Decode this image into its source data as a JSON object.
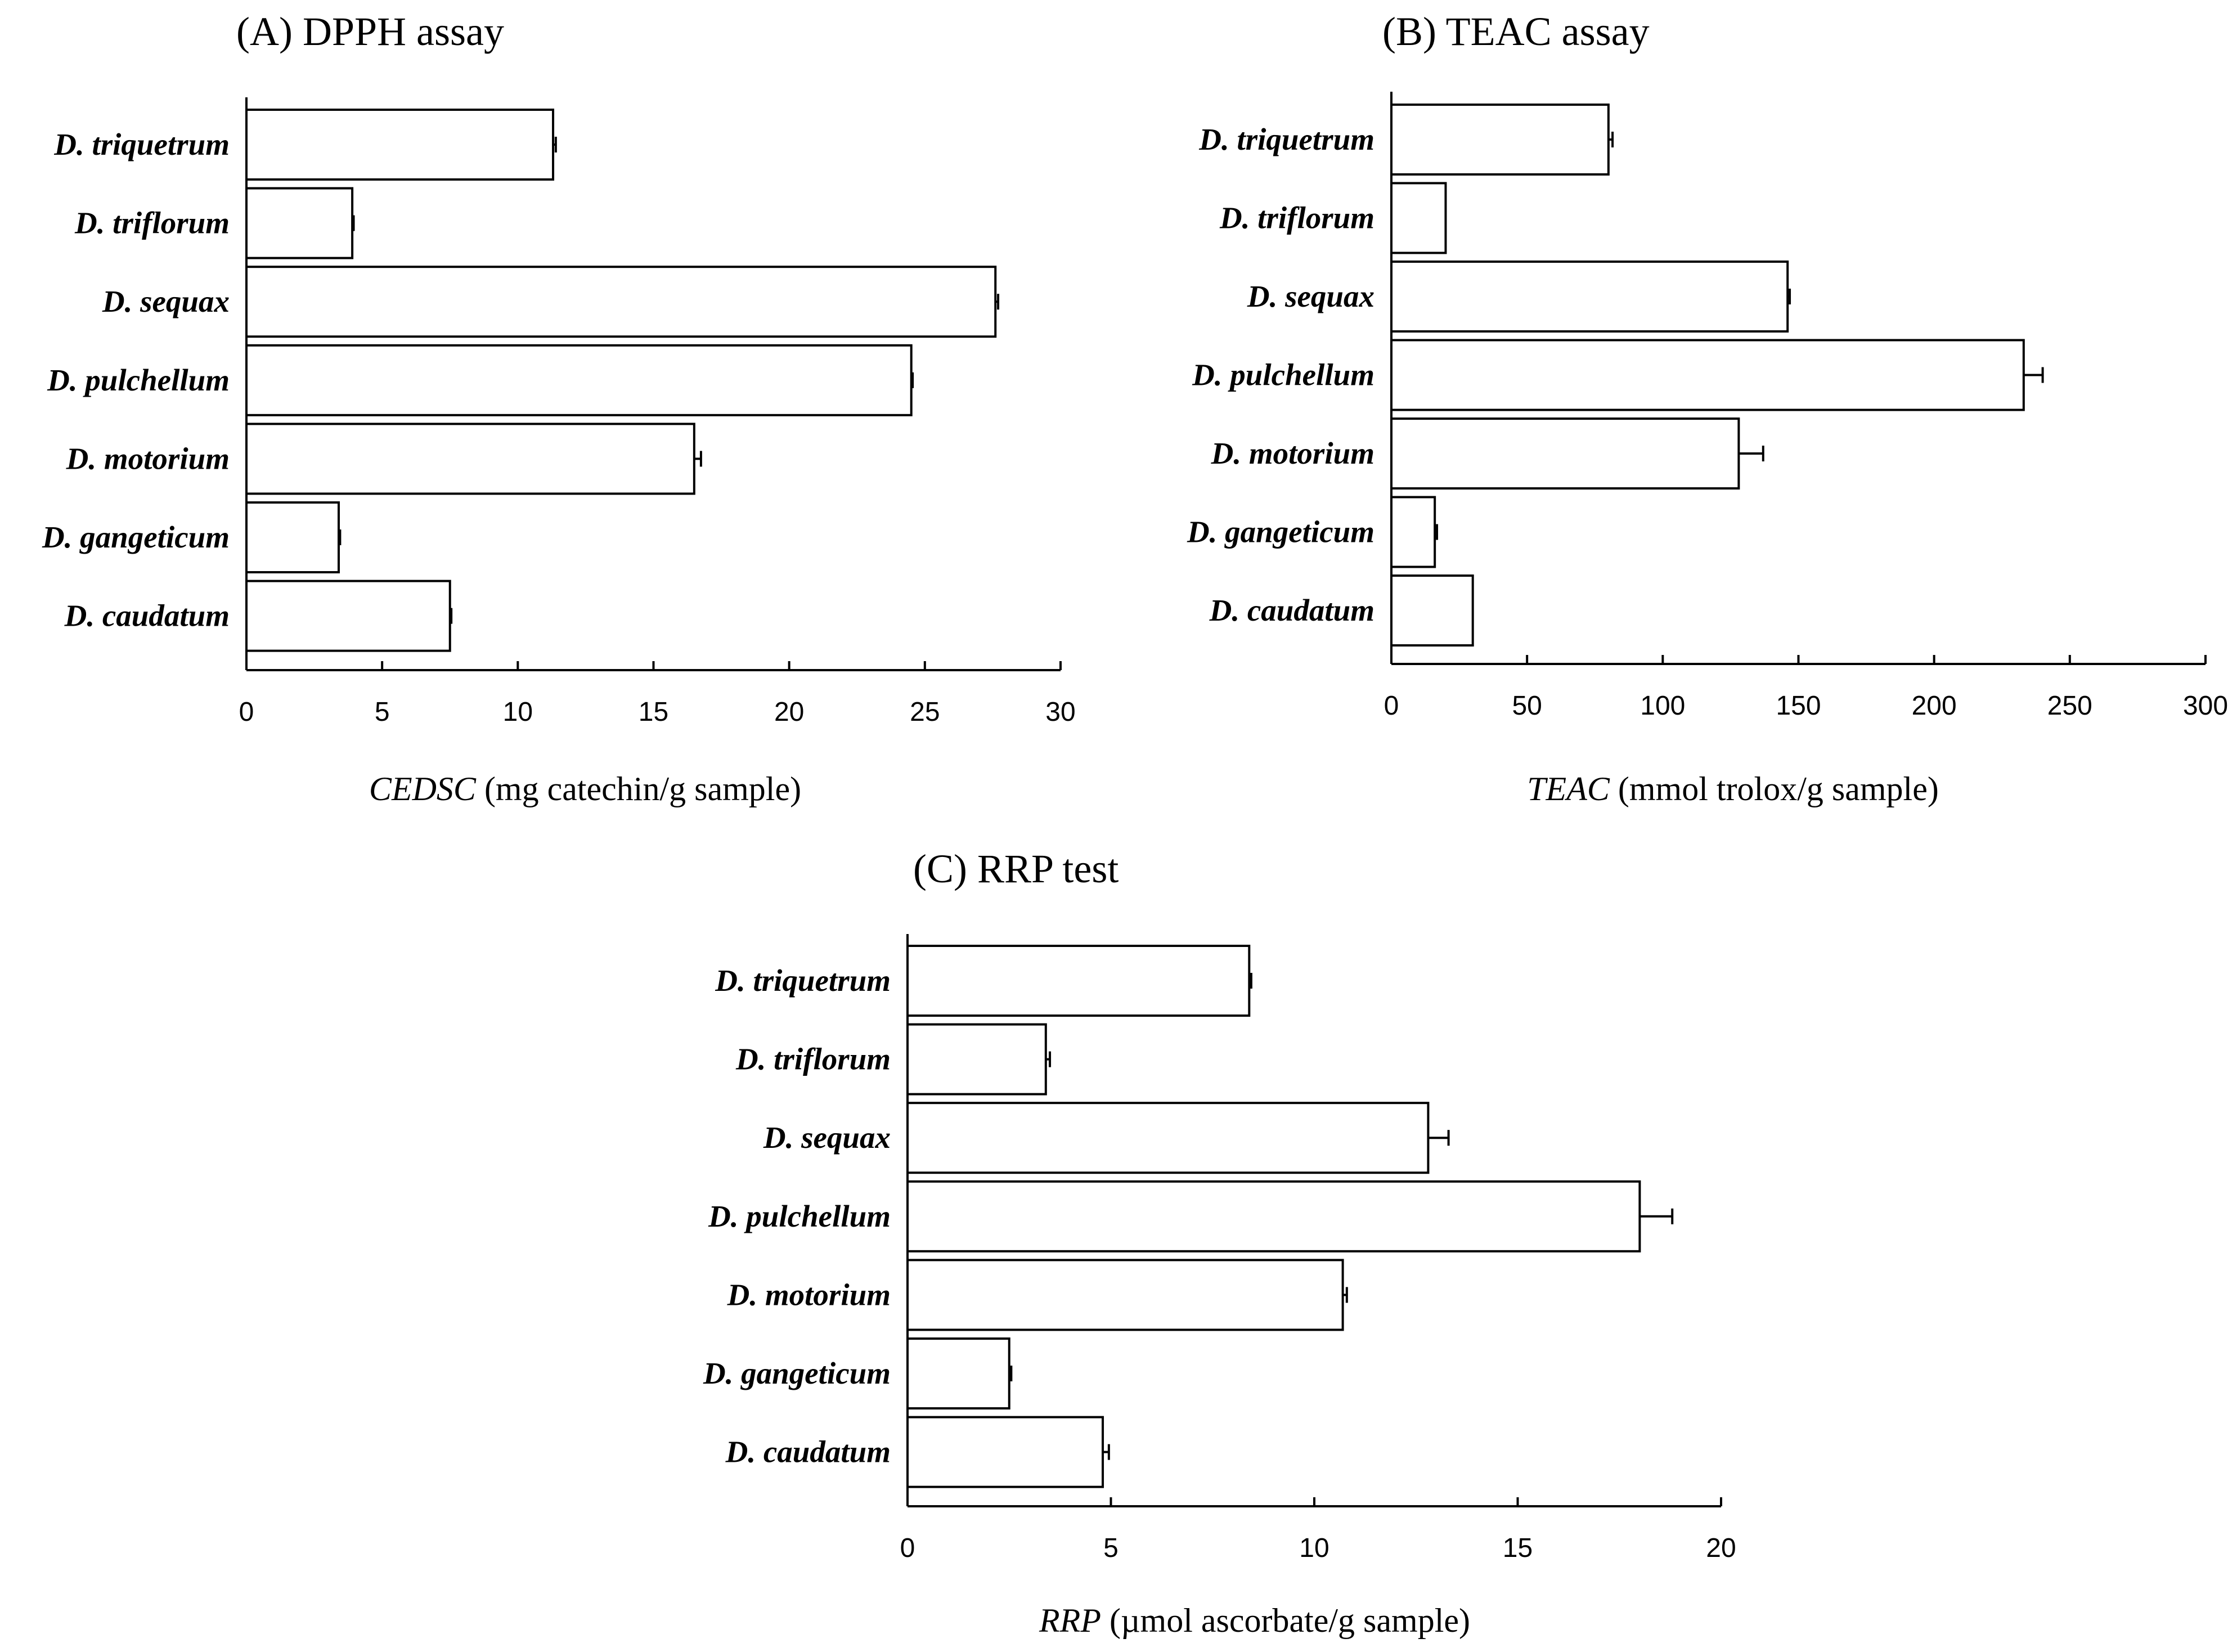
{
  "chart_data": [
    {
      "type": "bar",
      "orientation": "horizontal",
      "title": "(A) DPPH assay",
      "xlabel_italic": "CEDSC",
      "xlabel_rest": " (mg catechin/g sample)",
      "xlim": [
        0,
        30
      ],
      "xticks": [
        0,
        5,
        10,
        15,
        20,
        25,
        30
      ],
      "categories": [
        "D. triquetrum",
        "D. triflorum",
        "D. sequax",
        "D. pulchellum",
        "D. motorium",
        "D. gangeticum",
        "D. caudatum"
      ],
      "values": [
        11.3,
        3.9,
        27.6,
        24.5,
        16.5,
        3.4,
        7.5
      ],
      "errors": [
        0.1,
        0.05,
        0.1,
        0.05,
        0.25,
        0.05,
        0.05
      ]
    },
    {
      "type": "bar",
      "orientation": "horizontal",
      "title": "(B) TEAC assay",
      "xlabel_italic": "TEAC",
      "xlabel_rest": " (mmol trolox/g sample)",
      "xlim": [
        0,
        300
      ],
      "xticks": [
        0,
        50,
        100,
        150,
        200,
        250,
        300
      ],
      "categories": [
        "D. triquetrum",
        "D. triflorum",
        "D. sequax",
        "D. pulchellum",
        "D. motorium",
        "D. gangeticum",
        "D. caudatum"
      ],
      "values": [
        80,
        20,
        146,
        233,
        128,
        16,
        30
      ],
      "errors": [
        1.5,
        0,
        0.8,
        7,
        9,
        0.8,
        0
      ]
    },
    {
      "type": "bar",
      "orientation": "horizontal",
      "title": "(C) RRP test",
      "xlabel_italic": "RRP",
      "xlabel_rest": " (µmol ascorbate/g sample)",
      "xlim": [
        0,
        20
      ],
      "xticks": [
        0,
        5,
        10,
        15,
        20
      ],
      "categories": [
        "D. triquetrum",
        "D. triflorum",
        "D. sequax",
        "D. pulchellum",
        "D. motorium",
        "D. gangeticum",
        "D. caudatum"
      ],
      "values": [
        8.4,
        3.4,
        12.8,
        18.0,
        10.7,
        2.5,
        4.8
      ],
      "errors": [
        0.05,
        0.1,
        0.5,
        0.8,
        0.1,
        0.05,
        0.15
      ]
    }
  ]
}
